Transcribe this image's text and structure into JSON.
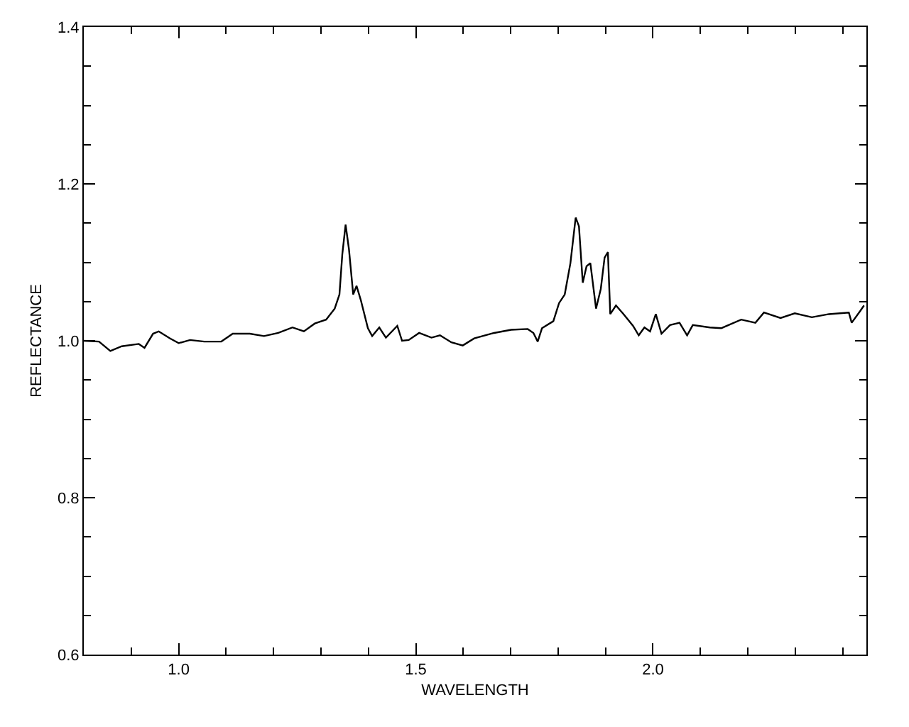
{
  "chart_data": {
    "type": "line",
    "xlabel": "WAVELENGTH",
    "ylabel": "REFLECTANCE",
    "xlim": [
      0.8,
      2.45
    ],
    "ylim": [
      0.6,
      1.4
    ],
    "xticks": [
      {
        "value": 0.9,
        "label": null
      },
      {
        "value": 1.0,
        "label": "1.0"
      },
      {
        "value": 1.1,
        "label": null
      },
      {
        "value": 1.2,
        "label": null
      },
      {
        "value": 1.3,
        "label": null
      },
      {
        "value": 1.4,
        "label": null
      },
      1.5,
      {
        "value": 1.6,
        "label": null
      },
      {
        "value": 1.7,
        "label": null
      },
      {
        "value": 1.8,
        "label": null
      },
      {
        "value": 1.9,
        "label": null
      },
      {
        "value": 2.0,
        "label": "2.0"
      },
      {
        "value": 2.1,
        "label": null
      },
      {
        "value": 2.2,
        "label": null
      },
      {
        "value": 2.3,
        "label": null
      },
      {
        "value": 2.4,
        "label": null
      }
    ],
    "yticks": [
      0.6,
      {
        "value": 0.65,
        "label": null
      },
      {
        "value": 0.7,
        "label": null
      },
      {
        "value": 0.75,
        "label": null
      },
      0.8,
      {
        "value": 0.85,
        "label": null
      },
      {
        "value": 0.9,
        "label": null
      },
      {
        "value": 0.95,
        "label": null
      },
      {
        "value": 1.0,
        "label": "1.0"
      },
      {
        "value": 1.05,
        "label": null
      },
      {
        "value": 1.1,
        "label": null
      },
      {
        "value": 1.15,
        "label": null
      },
      1.2,
      {
        "value": 1.25,
        "label": null
      },
      {
        "value": 1.3,
        "label": null
      },
      {
        "value": 1.35,
        "label": null
      },
      1.4
    ],
    "marker": "none",
    "line_style": "solid",
    "series": [
      {
        "color": "#000000",
        "x": [
          0.8,
          0.832,
          0.856,
          0.88,
          0.916,
          0.928,
          0.946,
          0.958,
          0.982,
          1.0,
          1.024,
          1.054,
          1.09,
          1.114,
          1.15,
          1.18,
          1.21,
          1.24,
          1.264,
          1.287,
          1.311,
          1.329,
          1.339,
          1.345,
          1.352,
          1.359,
          1.368,
          1.375,
          1.384,
          1.399,
          1.408,
          1.423,
          1.437,
          1.461,
          1.471,
          1.485,
          1.507,
          1.533,
          1.551,
          1.575,
          1.599,
          1.623,
          1.665,
          1.701,
          1.736,
          1.748,
          1.757,
          1.766,
          1.79,
          1.802,
          1.814,
          1.826,
          1.837,
          1.844,
          1.852,
          1.86,
          1.868,
          1.88,
          1.89,
          1.898,
          1.905,
          1.91,
          1.922,
          1.938,
          1.958,
          1.97,
          1.982,
          1.994,
          2.006,
          2.018,
          2.036,
          2.056,
          2.072,
          2.084,
          2.12,
          2.144,
          2.186,
          2.216,
          2.234,
          2.269,
          2.299,
          2.335,
          2.371,
          2.413,
          2.419,
          2.437,
          2.445
        ],
        "values": [
          1.0,
          0.999,
          0.987,
          0.993,
          0.996,
          0.991,
          1.009,
          1.012,
          1.003,
          0.997,
          1.001,
          0.999,
          0.999,
          1.009,
          1.009,
          1.006,
          1.01,
          1.017,
          1.012,
          1.022,
          1.027,
          1.041,
          1.059,
          1.11,
          1.148,
          1.117,
          1.059,
          1.07,
          1.052,
          1.016,
          1.006,
          1.017,
          1.004,
          1.019,
          1.0,
          1.001,
          1.01,
          1.004,
          1.007,
          0.998,
          0.994,
          1.003,
          1.01,
          1.014,
          1.015,
          1.01,
          0.999,
          1.016,
          1.025,
          1.048,
          1.059,
          1.099,
          1.157,
          1.146,
          1.074,
          1.095,
          1.099,
          1.041,
          1.066,
          1.106,
          1.113,
          1.034,
          1.045,
          1.034,
          1.019,
          1.007,
          1.017,
          1.012,
          1.034,
          1.009,
          1.02,
          1.023,
          1.007,
          1.02,
          1.017,
          1.016,
          1.027,
          1.023,
          1.036,
          1.029,
          1.035,
          1.03,
          1.034,
          1.036,
          1.023,
          1.038,
          1.045
        ]
      }
    ]
  }
}
